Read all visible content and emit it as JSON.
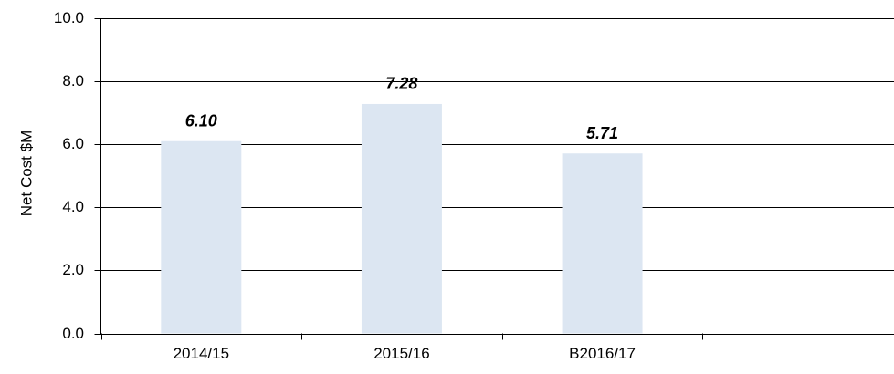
{
  "chart_data": {
    "type": "bar",
    "y_label": "Net Cost $M",
    "categories": [
      "2014/15",
      "2015/16",
      "B2016/17",
      null
    ],
    "values": [
      6.1,
      7.28,
      5.71,
      null
    ],
    "value_labels": [
      "6.10",
      "7.28",
      "5.71",
      null
    ],
    "color": "#dce6f2",
    "label_color": "#1e8c1e",
    "ylim": [
      0,
      10
    ],
    "yticks": [
      {
        "value": 0,
        "label": "0.0"
      },
      {
        "value": 2,
        "label": "2.0"
      },
      {
        "value": 4,
        "label": "4.0"
      },
      {
        "value": 6,
        "label": "6.0"
      },
      {
        "value": 8,
        "label": "8.0"
      },
      {
        "value": 10,
        "label": "10.0"
      }
    ],
    "grid": true
  }
}
